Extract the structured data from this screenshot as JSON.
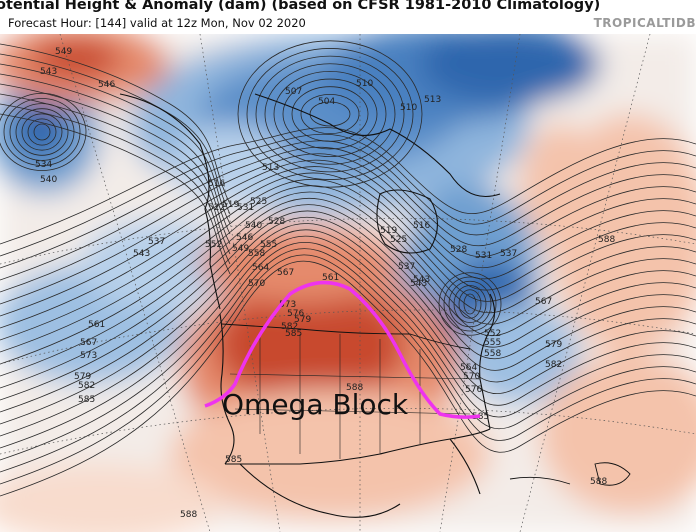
{
  "header": {
    "title": "otential Height & Anomaly (dam) (based on CFSR 1981-2010 Climatology)",
    "subtitle": "Forecast Hour: [144]   valid at 12z Mon, Nov 02 2020",
    "brand": "TROPICALTIDB"
  },
  "annotation": {
    "text": "Omega Block",
    "line_color": "#ee33ee"
  },
  "colors": {
    "warm_strong": "#c84a2f",
    "warm_mid": "#e58a6c",
    "warm_light": "#f4c3ab",
    "cold_strong": "#2e66ad",
    "cold_mid": "#6e9fd0",
    "cold_light": "#b7d0ea",
    "neutral": "#f4f1ef"
  },
  "contour_labels": [
    {
      "text": "549"
    },
    {
      "text": "543"
    },
    {
      "text": "546"
    },
    {
      "text": "534"
    },
    {
      "text": "540"
    },
    {
      "text": "507"
    },
    {
      "text": "504"
    },
    {
      "text": "510"
    },
    {
      "text": "513"
    },
    {
      "text": "510"
    },
    {
      "text": "513"
    },
    {
      "text": "516"
    },
    {
      "text": "519"
    },
    {
      "text": "522"
    },
    {
      "text": "525"
    },
    {
      "text": "528"
    },
    {
      "text": "531"
    },
    {
      "text": "537"
    },
    {
      "text": "543"
    },
    {
      "text": "540"
    },
    {
      "text": "546"
    },
    {
      "text": "549"
    },
    {
      "text": "552"
    },
    {
      "text": "555"
    },
    {
      "text": "558"
    },
    {
      "text": "564"
    },
    {
      "text": "567"
    },
    {
      "text": "570"
    },
    {
      "text": "561"
    },
    {
      "text": "573"
    },
    {
      "text": "576"
    },
    {
      "text": "579"
    },
    {
      "text": "582"
    },
    {
      "text": "585"
    },
    {
      "text": "588"
    },
    {
      "text": "537"
    },
    {
      "text": "543"
    },
    {
      "text": "519"
    },
    {
      "text": "525"
    },
    {
      "text": "516"
    },
    {
      "text": "528"
    },
    {
      "text": "531"
    },
    {
      "text": "537"
    },
    {
      "text": "543"
    },
    {
      "text": "567"
    },
    {
      "text": "579"
    },
    {
      "text": "582"
    },
    {
      "text": "588"
    },
    {
      "text": "561"
    },
    {
      "text": "567"
    },
    {
      "text": "573"
    },
    {
      "text": "579"
    },
    {
      "text": "582"
    },
    {
      "text": "585"
    },
    {
      "text": "585"
    },
    {
      "text": "588"
    },
    {
      "text": "588"
    },
    {
      "text": "552"
    },
    {
      "text": "555"
    },
    {
      "text": "558"
    },
    {
      "text": "564"
    },
    {
      "text": "570"
    },
    {
      "text": "576"
    },
    {
      "text": "585"
    }
  ]
}
